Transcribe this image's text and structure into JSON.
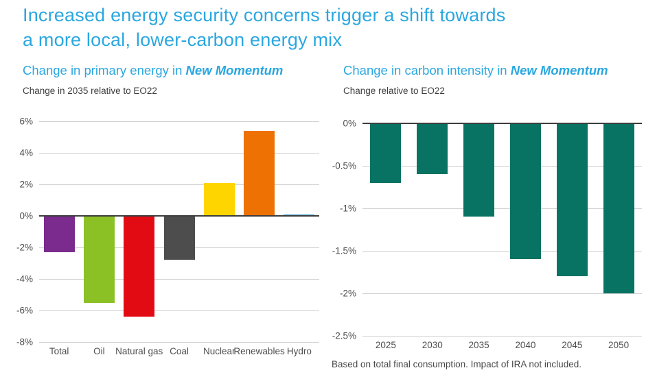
{
  "title": {
    "lines": [
      "Increased energy security concerns trigger a shift towards",
      "a more local, lower-carbon energy mix"
    ]
  },
  "charts": [
    {
      "heading_prefix": "Change in primary energy in ",
      "heading_emphasis": "New Momentum",
      "subtitle": "Change in 2035 relative to EO22"
    },
    {
      "heading_prefix": "Change in carbon intensity in ",
      "heading_emphasis": "New Momentum",
      "subtitle": "Change relative to EO22",
      "footnote": "Based on total final consumption. Impact of IRA not included."
    }
  ],
  "chart_data": [
    {
      "type": "bar",
      "title": "Change in primary energy in New Momentum",
      "subtitle": "Change in 2035 relative to EO22",
      "categories": [
        "Total",
        "Oil",
        "Natural gas",
        "Coal",
        "Nuclear",
        "Renewables",
        "Hydro"
      ],
      "values": [
        -2.3,
        -5.5,
        -6.4,
        -2.8,
        2.1,
        5.4,
        0.1
      ],
      "bar_colors": [
        "#7a2b8d",
        "#8bc125",
        "#e30b13",
        "#4d4d4d",
        "#ffd500",
        "#ee7203",
        "#2e9dc9"
      ],
      "ylim": [
        -8,
        6
      ],
      "yticks": [
        {
          "value": 6,
          "label": "6%"
        },
        {
          "value": 4,
          "label": "4%"
        },
        {
          "value": 2,
          "label": "2%"
        },
        {
          "value": 0,
          "label": "0%"
        },
        {
          "value": -2,
          "label": "-2%"
        },
        {
          "value": -4,
          "label": "-4%"
        },
        {
          "value": -6,
          "label": "-6%"
        },
        {
          "value": -8,
          "label": "-8%"
        }
      ],
      "grid": true,
      "legend": false
    },
    {
      "type": "bar",
      "title": "Change in carbon intensity in New Momentum",
      "subtitle": "Change relative to EO22",
      "categories": [
        "2025",
        "2030",
        "2035",
        "2040",
        "2045",
        "2050"
      ],
      "values": [
        -0.7,
        -0.6,
        -1.1,
        -1.6,
        -1.8,
        -2.0
      ],
      "bar_color": "#087362",
      "ylim": [
        -2.5,
        0
      ],
      "yticks": [
        {
          "value": 0,
          "label": "0%"
        },
        {
          "value": -0.5,
          "label": "-0.5%"
        },
        {
          "value": -1,
          "label": "-1%"
        },
        {
          "value": -1.5,
          "label": "-1.5%"
        },
        {
          "value": -2,
          "label": "-2%"
        },
        {
          "value": -2.5,
          "label": "-2.5%"
        }
      ],
      "grid": true,
      "legend": false,
      "annotation": "Based on total final consumption. Impact of IRA not included."
    }
  ],
  "colors": {
    "accent_blue": "#2aa7e0",
    "text_dark": "#3d3d3d",
    "tick_text": "#4d4d4d",
    "gridline": "#cfcfcf",
    "zero_axis": "#3d3d3d"
  }
}
